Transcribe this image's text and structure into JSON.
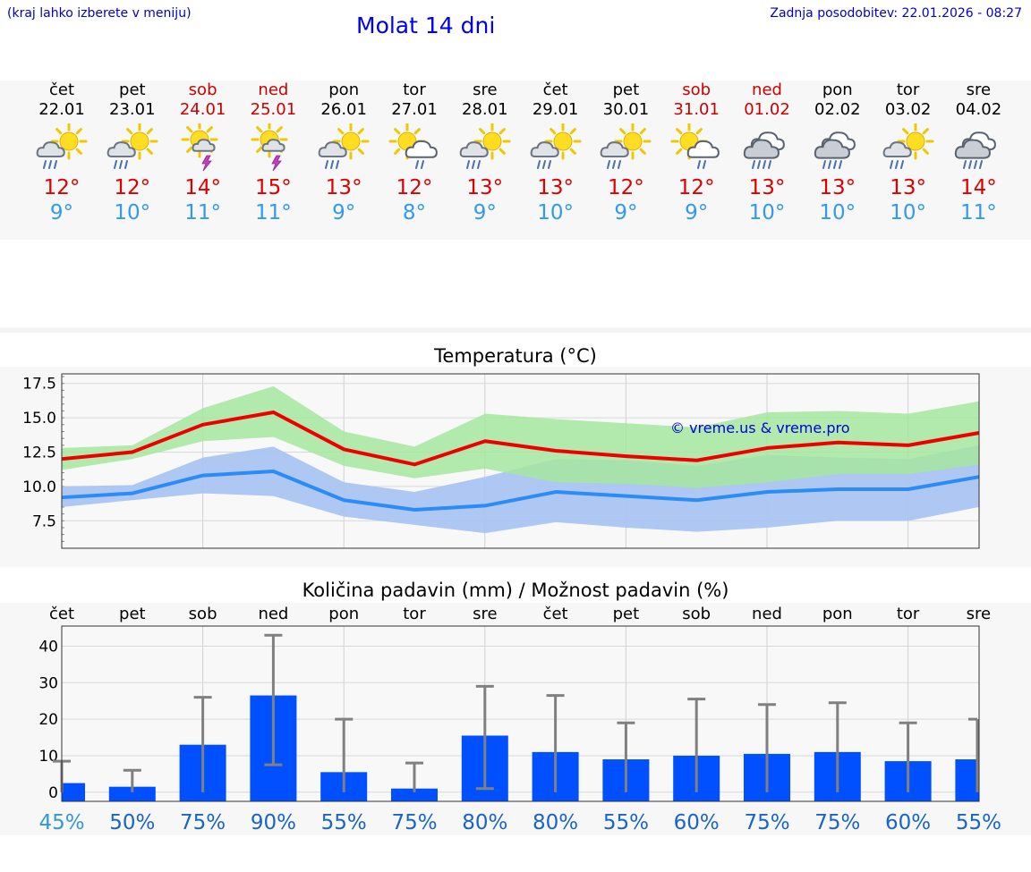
{
  "header": {
    "menu_hint": "(kraj lahko izberete v meniju)",
    "title": "Molat 14 dni",
    "updated": "Zadnja posodobitev: 22.01.2026 - 08:27"
  },
  "days": [
    {
      "name": "čet",
      "date": "22.01",
      "weekend": false,
      "icon": "partly-sunny-rain-icon",
      "tmax": "12°",
      "tmin": "9°"
    },
    {
      "name": "pet",
      "date": "23.01",
      "weekend": false,
      "icon": "partly-sunny-rain-icon",
      "tmax": "12°",
      "tmin": "10°"
    },
    {
      "name": "sob",
      "date": "24.01",
      "weekend": true,
      "icon": "sun-thunderstorm-icon",
      "tmax": "14°",
      "tmin": "11°"
    },
    {
      "name": "ned",
      "date": "25.01",
      "weekend": true,
      "icon": "sun-thunderstorm-icon",
      "tmax": "15°",
      "tmin": "11°"
    },
    {
      "name": "pon",
      "date": "26.01",
      "weekend": false,
      "icon": "partly-sunny-rain-icon",
      "tmax": "13°",
      "tmin": "9°"
    },
    {
      "name": "tor",
      "date": "27.01",
      "weekend": false,
      "icon": "sun-cloud-light-rain-icon",
      "tmax": "12°",
      "tmin": "8°"
    },
    {
      "name": "sre",
      "date": "28.01",
      "weekend": false,
      "icon": "partly-sunny-rain-icon",
      "tmax": "13°",
      "tmin": "9°"
    },
    {
      "name": "čet",
      "date": "29.01",
      "weekend": false,
      "icon": "partly-sunny-rain-icon",
      "tmax": "13°",
      "tmin": "10°"
    },
    {
      "name": "pet",
      "date": "30.01",
      "weekend": false,
      "icon": "partly-sunny-rain-icon",
      "tmax": "12°",
      "tmin": "9°"
    },
    {
      "name": "sob",
      "date": "31.01",
      "weekend": true,
      "icon": "sun-cloud-light-rain-icon",
      "tmax": "12°",
      "tmin": "9°"
    },
    {
      "name": "ned",
      "date": "01.02",
      "weekend": true,
      "icon": "cloud-rain-icon",
      "tmax": "13°",
      "tmin": "10°"
    },
    {
      "name": "pon",
      "date": "02.02",
      "weekend": false,
      "icon": "cloud-rain-icon",
      "tmax": "13°",
      "tmin": "10°"
    },
    {
      "name": "tor",
      "date": "03.02",
      "weekend": false,
      "icon": "partly-sunny-rain-icon",
      "tmax": "13°",
      "tmin": "10°"
    },
    {
      "name": "sre",
      "date": "04.02",
      "weekend": false,
      "icon": "cloud-rain-icon",
      "tmax": "14°",
      "tmin": "11°"
    }
  ],
  "colors": {
    "weekend": "#cc0000",
    "tmax": "#dd0000",
    "tmin": "#3399ee",
    "max_band": "#a6e6a0",
    "min_band": "#aac4f2",
    "max_line": "#ee0000",
    "min_line": "#2b8cf5",
    "bar": "#0050ff",
    "error_bar": "#808080",
    "percent": "#1a64c8",
    "percent_first": "#3399cc"
  },
  "chart_data": [
    {
      "type": "line",
      "title": "Temperatura (°C)",
      "watermark": "© vreme.us & vreme.pro",
      "ylim": [
        5.5,
        18.2
      ],
      "yticks": [
        "17.5",
        "15.0",
        "12.5",
        "10.0",
        "7.5"
      ],
      "ytick_values": [
        17.5,
        15.0,
        12.5,
        10.0,
        7.5
      ],
      "x": [
        0,
        1,
        2,
        3,
        4,
        5,
        6,
        7,
        8,
        9,
        10,
        11,
        12,
        13
      ],
      "series": [
        {
          "name": "max",
          "values": [
            12.0,
            12.5,
            14.5,
            15.4,
            12.7,
            11.6,
            13.3,
            12.6,
            12.2,
            11.9,
            12.8,
            13.2,
            13.0,
            13.9
          ],
          "upper": [
            12.8,
            13.0,
            15.7,
            17.3,
            14.0,
            12.9,
            15.3,
            14.9,
            14.6,
            14.3,
            15.4,
            15.5,
            15.3,
            16.2
          ],
          "lower": [
            11.2,
            12.0,
            13.3,
            13.6,
            11.5,
            10.6,
            11.3,
            10.3,
            10.2,
            9.9,
            10.3,
            10.9,
            10.9,
            11.6
          ]
        },
        {
          "name": "min",
          "values": [
            9.2,
            9.5,
            10.8,
            11.1,
            9.0,
            8.3,
            8.6,
            9.6,
            9.3,
            9.0,
            9.6,
            9.8,
            9.8,
            10.7
          ],
          "upper": [
            10.0,
            10.1,
            12.1,
            12.9,
            10.3,
            9.6,
            10.7,
            12.0,
            11.9,
            11.5,
            12.3,
            12.1,
            12.0,
            13.0
          ],
          "lower": [
            8.5,
            9.0,
            9.5,
            9.3,
            7.8,
            7.2,
            6.6,
            7.4,
            7.0,
            6.7,
            7.0,
            7.5,
            7.5,
            8.5
          ]
        }
      ]
    },
    {
      "type": "bar",
      "title": "Količina padavin (mm) / Možnost padavin (%)",
      "categories": [
        "čet",
        "pet",
        "sob",
        "ned",
        "pon",
        "tor",
        "sre",
        "čet",
        "pet",
        "sob",
        "ned",
        "pon",
        "tor",
        "sre"
      ],
      "ylim": [
        -2.5,
        45.5
      ],
      "yticks": [
        "40",
        "30",
        "20",
        "10",
        "0"
      ],
      "ytick_values": [
        40,
        30,
        20,
        10,
        0
      ],
      "values": [
        2.5,
        1.5,
        13.0,
        26.5,
        5.5,
        1.0,
        15.5,
        11.0,
        9.0,
        10.0,
        10.5,
        11.0,
        8.5,
        9.0
      ],
      "error_high": [
        8.5,
        6.0,
        26.0,
        43.0,
        20.0,
        8.0,
        29.0,
        26.5,
        19.0,
        25.5,
        24.0,
        24.5,
        19.0,
        20.0
      ],
      "error_low": [
        0,
        0,
        0,
        7.5,
        0,
        0,
        1.0,
        0,
        0,
        0,
        0,
        0,
        0,
        0
      ],
      "probability": [
        "45%",
        "50%",
        "75%",
        "90%",
        "55%",
        "75%",
        "80%",
        "80%",
        "55%",
        "60%",
        "75%",
        "75%",
        "60%",
        "55%"
      ]
    }
  ]
}
